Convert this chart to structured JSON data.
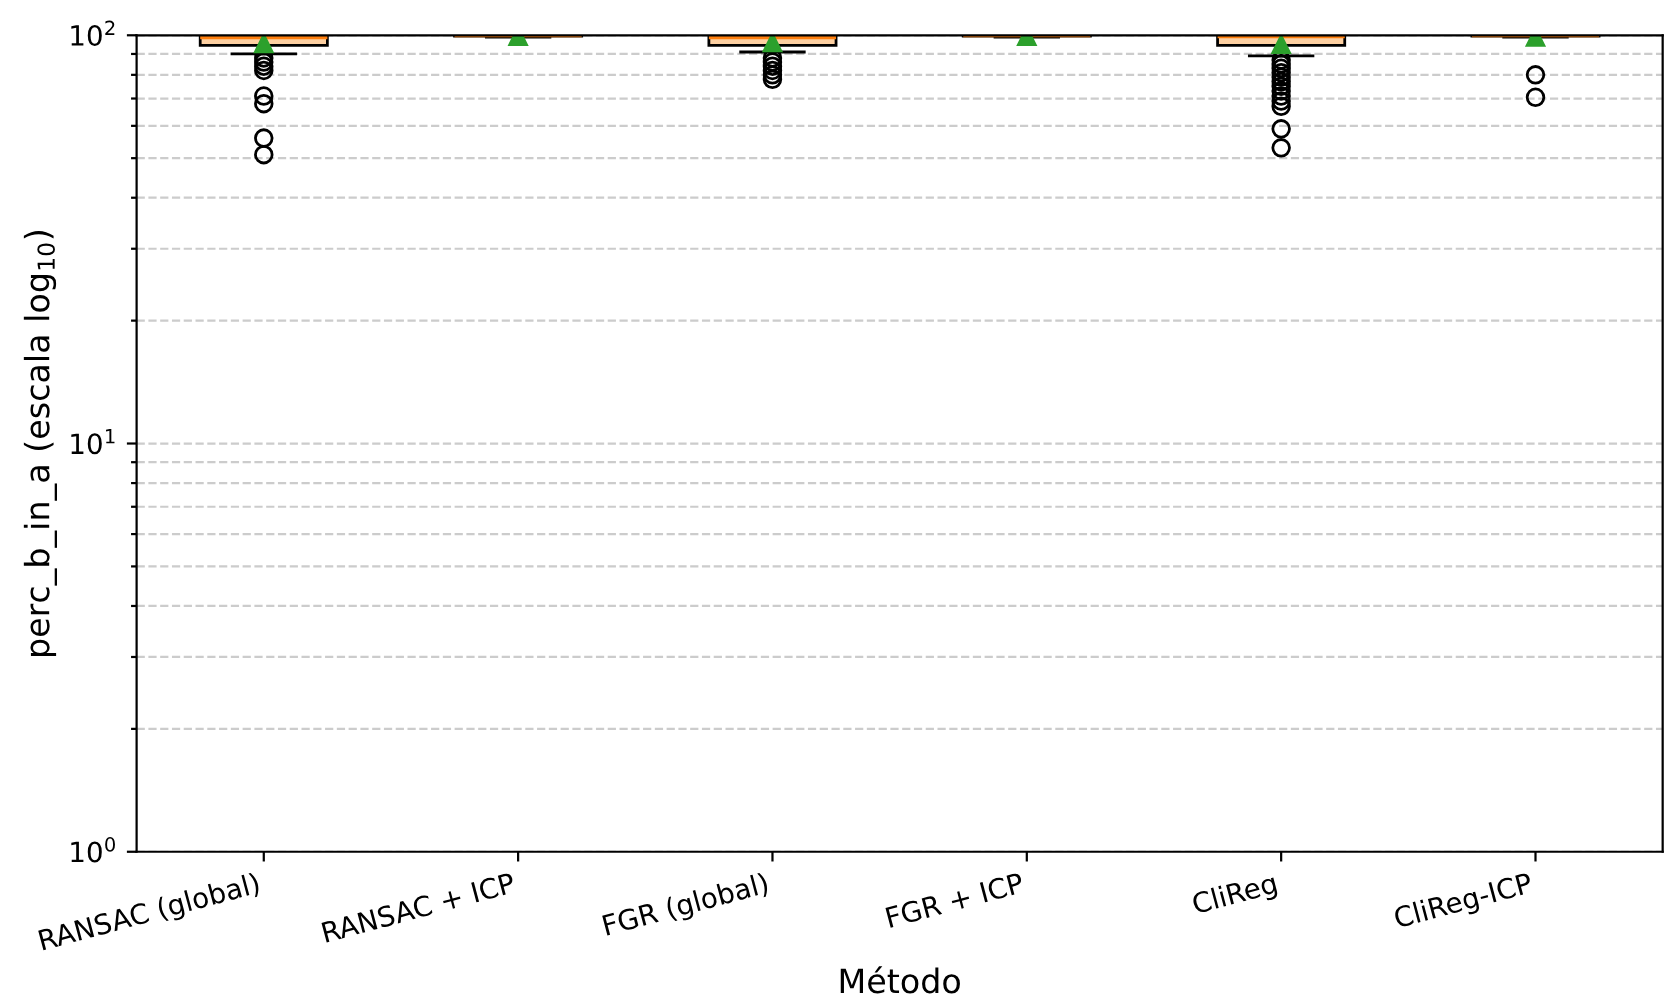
{
  "chart_data": {
    "type": "box",
    "xlabel": "Método",
    "ylabel": "perc_b_in_a (escala log$_{10}$)",
    "categories": [
      "RANSAC (global)",
      "RANSAC + ICP",
      "FGR (global)",
      "FGR + ICP",
      "CliReg",
      "CliReg-ICP"
    ],
    "boxes": [
      {
        "low": 90,
        "q1": 94.5,
        "median": 99,
        "q3": 100,
        "high": 100,
        "mean": 95.5,
        "outliers": [
          88,
          86,
          84,
          82,
          71,
          68,
          56,
          51
        ]
      },
      {
        "low": 99,
        "q1": 99.5,
        "median": 100,
        "q3": 100,
        "high": 100,
        "mean": 99.5
      },
      {
        "low": 91,
        "q1": 94.5,
        "median": 99,
        "q3": 100,
        "high": 100,
        "mean": 96,
        "outliers": [
          88,
          86,
          84,
          82,
          80,
          78
        ]
      },
      {
        "low": 99,
        "q1": 99.5,
        "median": 100,
        "q3": 100,
        "high": 100,
        "mean": 99.5
      },
      {
        "low": 89,
        "q1": 94.5,
        "median": 99.5,
        "q3": 100,
        "high": 100,
        "mean": 95,
        "outliers": [
          87,
          85,
          83,
          81,
          79,
          77,
          75,
          73,
          71,
          69,
          67,
          59,
          53
        ]
      },
      {
        "low": 99,
        "q1": 99.5,
        "median": 100,
        "q3": 100,
        "high": 100,
        "mean": 99,
        "outliers": [
          80,
          70.5
        ]
      }
    ],
    "color": "#fdd0a2",
    "log": "y",
    "ylim": [
      1,
      100
    ],
    "yticks": [
      {
        "value": 1,
        "label": "10$^{0}$"
      },
      {
        "value": 2,
        "label": null
      },
      {
        "value": 3,
        "label": null
      },
      {
        "value": 4,
        "label": null
      },
      {
        "value": 5,
        "label": null
      },
      {
        "value": 6,
        "label": null
      },
      {
        "value": 7,
        "label": null
      },
      {
        "value": 8,
        "label": null
      },
      {
        "value": 9,
        "label": null
      },
      {
        "value": 10,
        "label": "10$^{1}$"
      },
      {
        "value": 20,
        "label": null
      },
      {
        "value": 30,
        "label": null
      },
      {
        "value": 40,
        "label": null
      },
      {
        "value": 50,
        "label": null
      },
      {
        "value": 60,
        "label": null
      },
      {
        "value": 70,
        "label": null
      },
      {
        "value": 80,
        "label": null
      },
      {
        "value": 90,
        "label": null
      },
      {
        "value": 100,
        "label": "10$^{2}$"
      }
    ],
    "grid": "y"
  }
}
